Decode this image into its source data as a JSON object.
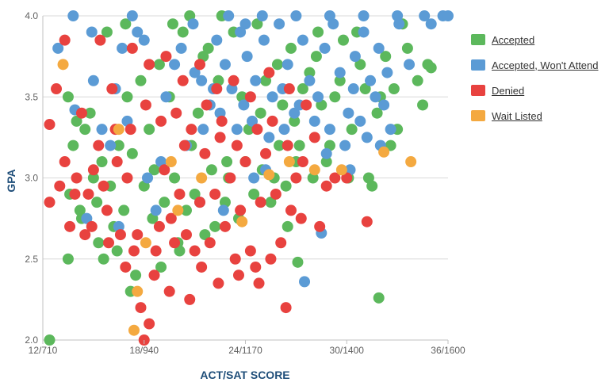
{
  "chart_data": {
    "type": "scatter",
    "title": "",
    "xlabel": "ACT/SAT SCORE",
    "ylabel": "GPA",
    "xlim": [
      12,
      36
    ],
    "ylim": [
      2.0,
      4.0
    ],
    "x_ticks": [
      "12/710",
      "18/940",
      "24/1170",
      "30/1400",
      "36/1600"
    ],
    "x_tick_values": [
      12,
      18,
      24,
      30,
      36
    ],
    "y_ticks": [
      "2.0",
      "2.5",
      "3.0",
      "3.5",
      "4.0"
    ],
    "y_tick_values": [
      2.0,
      2.5,
      3.0,
      3.5,
      4.0
    ],
    "grid": "horizontal",
    "legend_position": "right",
    "series": [
      {
        "name": "Accepted",
        "color": "#5cb85c",
        "points": [
          [
            12.4,
            2.0
          ],
          [
            13.5,
            2.5
          ],
          [
            14.2,
            2.8
          ],
          [
            15.6,
            2.5
          ],
          [
            16.2,
            2.7
          ],
          [
            17.5,
            2.4
          ],
          [
            19.0,
            2.45
          ],
          [
            20.0,
            2.6
          ],
          [
            22.2,
            2.7
          ],
          [
            26.5,
            2.7
          ],
          [
            27.1,
            2.48
          ],
          [
            31.9,
            2.26
          ],
          [
            13.8,
            3.2
          ],
          [
            14.5,
            3.3
          ],
          [
            15.0,
            3.0
          ],
          [
            15.5,
            3.1
          ],
          [
            16.5,
            3.2
          ],
          [
            17.0,
            3.5
          ],
          [
            17.8,
            3.6
          ],
          [
            18.3,
            3.3
          ],
          [
            18.9,
            3.7
          ],
          [
            19.5,
            3.5
          ],
          [
            20.3,
            3.9
          ],
          [
            20.8,
            3.2
          ],
          [
            21.2,
            3.4
          ],
          [
            21.8,
            3.8
          ],
          [
            22.4,
            3.6
          ],
          [
            22.9,
            3.1
          ],
          [
            23.3,
            3.9
          ],
          [
            23.8,
            3.5
          ],
          [
            24.2,
            3.3
          ],
          [
            24.7,
            3.95
          ],
          [
            25.2,
            3.6
          ],
          [
            25.7,
            3.0
          ],
          [
            26.2,
            3.45
          ],
          [
            26.7,
            3.8
          ],
          [
            27.2,
            3.2
          ],
          [
            27.8,
            3.65
          ],
          [
            28.3,
            3.9
          ],
          [
            28.8,
            3.1
          ],
          [
            29.3,
            3.5
          ],
          [
            29.8,
            3.85
          ],
          [
            30.3,
            3.3
          ],
          [
            30.8,
            3.7
          ],
          [
            31.3,
            3.0
          ],
          [
            31.8,
            3.4
          ],
          [
            32.3,
            3.75
          ],
          [
            32.8,
            3.55
          ],
          [
            33.3,
            3.95
          ],
          [
            34.2,
            3.6
          ],
          [
            34.8,
            3.7
          ],
          [
            35.0,
            3.68
          ],
          [
            31.5,
            2.95
          ],
          [
            32.0,
            3.5
          ],
          [
            33.0,
            3.3
          ],
          [
            30.1,
            3.0
          ],
          [
            29.0,
            3.2
          ],
          [
            28.0,
            3.0
          ],
          [
            27.0,
            3.1
          ],
          [
            26.0,
            3.2
          ],
          [
            25.0,
            3.05
          ],
          [
            24.0,
            3.1
          ],
          [
            23.0,
            3.0
          ],
          [
            22.0,
            3.05
          ],
          [
            21.0,
            2.9
          ],
          [
            20.5,
            2.8
          ],
          [
            19.8,
            3.0
          ],
          [
            19.2,
            2.85
          ],
          [
            18.6,
            3.05
          ],
          [
            18.0,
            2.95
          ],
          [
            17.3,
            3.15
          ],
          [
            16.8,
            2.8
          ],
          [
            16.0,
            2.95
          ],
          [
            15.2,
            2.85
          ],
          [
            14.8,
            3.4
          ],
          [
            14.0,
            3.35
          ],
          [
            13.6,
            2.9
          ],
          [
            13.5,
            3.5
          ],
          [
            15.8,
            3.9
          ],
          [
            16.9,
            3.95
          ],
          [
            20.7,
            4.0
          ],
          [
            22.6,
            4.0
          ],
          [
            19.7,
            3.95
          ],
          [
            21.5,
            3.75
          ],
          [
            24.5,
            2.9
          ],
          [
            25.5,
            2.85
          ],
          [
            26.4,
            2.95
          ],
          [
            23.6,
            2.75
          ],
          [
            22.8,
            2.85
          ],
          [
            21.6,
            2.65
          ],
          [
            20.1,
            2.55
          ],
          [
            18.5,
            2.75
          ],
          [
            17.2,
            2.3
          ],
          [
            16.4,
            2.55
          ],
          [
            15.3,
            2.6
          ],
          [
            14.3,
            2.75
          ],
          [
            28.5,
            3.45
          ],
          [
            29.6,
            3.6
          ],
          [
            30.6,
            3.9
          ],
          [
            31.1,
            3.55
          ],
          [
            32.6,
            3.2
          ],
          [
            33.6,
            3.8
          ],
          [
            34.5,
            3.45
          ],
          [
            28.2,
            3.75
          ],
          [
            27.4,
            3.55
          ],
          [
            26.9,
            3.35
          ],
          [
            25.9,
            3.7
          ],
          [
            24.9,
            3.4
          ]
        ]
      },
      {
        "name": "Accepted, Won't Attend",
        "color": "#5b9bd5",
        "points": [
          [
            12.9,
            3.8
          ],
          [
            13.8,
            4.0
          ],
          [
            17.3,
            4.0
          ],
          [
            17.6,
            3.9
          ],
          [
            16.3,
            3.55
          ],
          [
            15.5,
            3.3
          ],
          [
            13.9,
            3.42
          ],
          [
            14.6,
            2.75
          ],
          [
            16.5,
            2.7
          ],
          [
            18.7,
            2.8
          ],
          [
            21.3,
            2.85
          ],
          [
            22.7,
            2.8
          ],
          [
            24.5,
            3.0
          ],
          [
            25.2,
            3.05
          ],
          [
            28.5,
            2.66
          ],
          [
            27.5,
            2.36
          ],
          [
            30.2,
            3.05
          ],
          [
            32.6,
            3.3
          ],
          [
            32.0,
            3.2
          ],
          [
            31.7,
            3.5
          ],
          [
            33.1,
            3.95
          ],
          [
            34.6,
            4.0
          ],
          [
            35.0,
            3.95
          ],
          [
            35.7,
            4.0
          ],
          [
            36.0,
            4.0
          ],
          [
            33.7,
            3.7
          ],
          [
            19.3,
            3.5
          ],
          [
            19.8,
            3.7
          ],
          [
            20.2,
            3.8
          ],
          [
            20.9,
            3.95
          ],
          [
            21.4,
            3.6
          ],
          [
            21.9,
            3.45
          ],
          [
            22.3,
            3.85
          ],
          [
            22.8,
            3.7
          ],
          [
            23.2,
            3.55
          ],
          [
            23.7,
            3.9
          ],
          [
            24.1,
            3.75
          ],
          [
            24.6,
            3.6
          ],
          [
            25.1,
            3.85
          ],
          [
            25.6,
            3.5
          ],
          [
            26.0,
            3.95
          ],
          [
            26.5,
            3.7
          ],
          [
            26.9,
            3.4
          ],
          [
            27.4,
            3.85
          ],
          [
            27.8,
            3.6
          ],
          [
            28.3,
            3.5
          ],
          [
            28.7,
            3.8
          ],
          [
            29.2,
            3.95
          ],
          [
            29.6,
            3.65
          ],
          [
            30.1,
            3.4
          ],
          [
            30.5,
            3.75
          ],
          [
            31.0,
            3.9
          ],
          [
            31.4,
            3.6
          ],
          [
            31.9,
            3.8
          ],
          [
            32.4,
            3.65
          ],
          [
            22.5,
            3.4
          ],
          [
            23.5,
            3.3
          ],
          [
            24.4,
            3.35
          ],
          [
            25.4,
            3.25
          ],
          [
            26.3,
            3.3
          ],
          [
            27.2,
            3.45
          ],
          [
            28.1,
            3.35
          ],
          [
            29.0,
            3.3
          ],
          [
            29.9,
            3.2
          ],
          [
            30.8,
            3.35
          ],
          [
            20.5,
            3.2
          ],
          [
            21.5,
            3.3
          ],
          [
            19.0,
            3.1
          ],
          [
            18.2,
            3.0
          ],
          [
            17.0,
            3.35
          ],
          [
            16.0,
            3.2
          ],
          [
            15.0,
            3.6
          ],
          [
            14.9,
            3.9
          ],
          [
            16.7,
            3.8
          ],
          [
            18.0,
            3.85
          ],
          [
            23.0,
            4.0
          ],
          [
            25.0,
            4.0
          ],
          [
            27.0,
            4.0
          ],
          [
            29.0,
            4.0
          ],
          [
            31.0,
            4.0
          ],
          [
            33.0,
            4.0
          ],
          [
            24.0,
            3.95
          ],
          [
            26.2,
            3.55
          ],
          [
            28.8,
            3.15
          ],
          [
            30.4,
            3.55
          ],
          [
            31.2,
            3.25
          ],
          [
            32.2,
            3.45
          ],
          [
            21.0,
            3.65
          ],
          [
            22.1,
            3.55
          ],
          [
            23.9,
            3.45
          ]
        ]
      },
      {
        "name": "Denied",
        "color": "#e8423f",
        "points": [
          [
            12.4,
            3.33
          ],
          [
            12.4,
            2.85
          ],
          [
            12.8,
            3.55
          ],
          [
            13.3,
            3.85
          ],
          [
            14.0,
            3.0
          ],
          [
            14.5,
            2.65
          ],
          [
            15.0,
            3.05
          ],
          [
            15.4,
            3.85
          ],
          [
            15.8,
            2.8
          ],
          [
            16.1,
            3.55
          ],
          [
            16.6,
            2.65
          ],
          [
            17.0,
            3.0
          ],
          [
            17.4,
            2.55
          ],
          [
            17.8,
            2.2
          ],
          [
            18.0,
            2.0
          ],
          [
            18.3,
            2.1
          ],
          [
            18.6,
            2.4
          ],
          [
            18.9,
            2.7
          ],
          [
            19.2,
            3.05
          ],
          [
            19.5,
            2.3
          ],
          [
            19.8,
            2.6
          ],
          [
            20.1,
            2.9
          ],
          [
            20.4,
            3.2
          ],
          [
            20.7,
            2.25
          ],
          [
            21.0,
            2.55
          ],
          [
            21.3,
            2.85
          ],
          [
            21.6,
            3.15
          ],
          [
            21.9,
            2.6
          ],
          [
            22.2,
            2.9
          ],
          [
            22.5,
            3.25
          ],
          [
            22.8,
            2.7
          ],
          [
            23.1,
            3.0
          ],
          [
            23.4,
            2.5
          ],
          [
            23.7,
            2.8
          ],
          [
            24.0,
            3.1
          ],
          [
            24.3,
            2.55
          ],
          [
            24.6,
            2.45
          ],
          [
            24.9,
            2.85
          ],
          [
            25.2,
            3.15
          ],
          [
            25.5,
            2.5
          ],
          [
            25.8,
            2.9
          ],
          [
            26.1,
            2.6
          ],
          [
            26.4,
            2.2
          ],
          [
            26.7,
            2.8
          ],
          [
            27.0,
            3.0
          ],
          [
            27.3,
            2.75
          ],
          [
            28.4,
            2.7
          ],
          [
            29.3,
            3.0
          ],
          [
            30.0,
            3.0
          ],
          [
            31.2,
            2.73
          ],
          [
            28.1,
            3.25
          ],
          [
            27.6,
            3.45
          ],
          [
            26.6,
            3.55
          ],
          [
            25.4,
            3.65
          ],
          [
            24.3,
            3.5
          ],
          [
            23.3,
            3.6
          ],
          [
            22.3,
            3.55
          ],
          [
            21.3,
            3.7
          ],
          [
            20.3,
            3.6
          ],
          [
            19.3,
            3.75
          ],
          [
            18.3,
            3.7
          ],
          [
            17.3,
            3.8
          ],
          [
            16.3,
            3.3
          ],
          [
            15.3,
            3.2
          ],
          [
            14.3,
            3.4
          ],
          [
            13.3,
            3.1
          ],
          [
            13.0,
            2.95
          ],
          [
            13.6,
            2.7
          ],
          [
            14.7,
            2.9
          ],
          [
            15.6,
            2.95
          ],
          [
            16.4,
            3.1
          ],
          [
            17.2,
            3.3
          ],
          [
            18.1,
            3.45
          ],
          [
            19.0,
            3.35
          ],
          [
            19.9,
            3.4
          ],
          [
            20.8,
            3.3
          ],
          [
            21.7,
            3.45
          ],
          [
            22.6,
            3.35
          ],
          [
            23.5,
            3.2
          ],
          [
            24.7,
            3.3
          ],
          [
            25.6,
            3.35
          ],
          [
            26.5,
            3.2
          ],
          [
            27.4,
            3.1
          ],
          [
            28.8,
            2.95
          ],
          [
            17.6,
            2.65
          ],
          [
            18.7,
            2.55
          ],
          [
            19.6,
            2.75
          ],
          [
            20.5,
            2.65
          ],
          [
            21.4,
            2.45
          ],
          [
            22.4,
            2.35
          ],
          [
            23.6,
            2.4
          ],
          [
            24.8,
            2.35
          ],
          [
            16.9,
            2.45
          ],
          [
            15.9,
            2.6
          ],
          [
            14.9,
            2.7
          ],
          [
            13.9,
            2.9
          ]
        ]
      },
      {
        "name": "Wait Listed",
        "color": "#f4a940",
        "points": [
          [
            13.2,
            3.7
          ],
          [
            17.4,
            2.06
          ],
          [
            17.6,
            2.3
          ],
          [
            18.1,
            2.6
          ],
          [
            20.0,
            2.8
          ],
          [
            21.4,
            3.0
          ],
          [
            23.8,
            2.73
          ],
          [
            25.4,
            3.02
          ],
          [
            28.1,
            3.05
          ],
          [
            29.7,
            3.05
          ],
          [
            32.2,
            3.16
          ],
          [
            33.8,
            3.1
          ],
          [
            16.5,
            3.3
          ],
          [
            19.6,
            3.1
          ],
          [
            26.6,
            3.1
          ]
        ]
      }
    ]
  }
}
